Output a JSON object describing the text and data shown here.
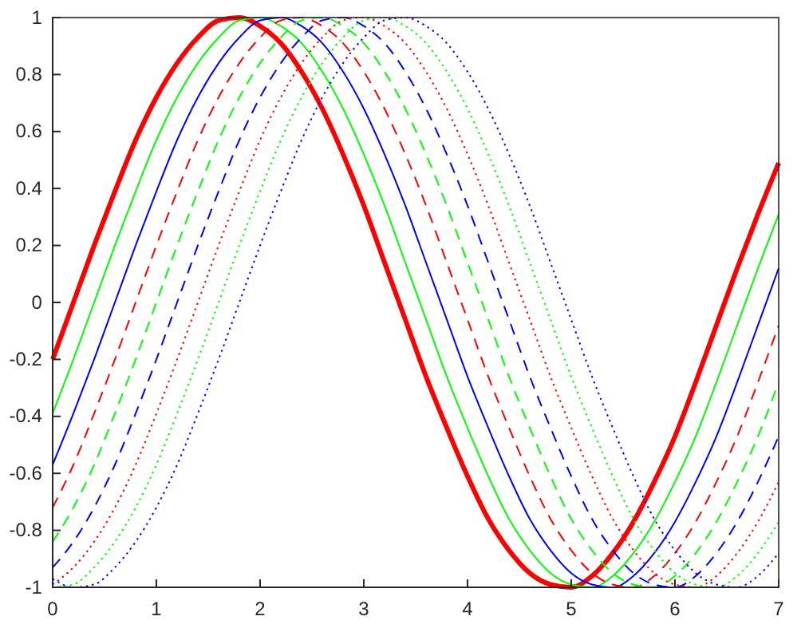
{
  "chart_data": {
    "type": "line",
    "x": [
      0,
      0.2,
      0.4,
      0.6,
      0.8,
      1,
      1.2,
      1.4,
      1.6,
      1.8,
      2,
      2.2,
      2.4,
      2.6,
      2.8,
      3,
      3.2,
      3.4,
      3.6,
      3.8,
      4,
      4.2,
      4.4,
      4.6,
      4.8,
      5,
      5.2,
      5.4,
      5.6,
      5.8,
      6,
      6.2,
      6.4,
      6.6,
      6.8,
      7
    ],
    "xlim": [
      0,
      7
    ],
    "xticks": [
      0,
      1,
      2,
      3,
      4,
      5,
      6,
      7
    ],
    "ylim": [
      -1,
      1
    ],
    "yticks": [
      -1,
      -0.8,
      -0.6,
      -0.4,
      -0.2,
      0,
      0.2,
      0.4,
      0.6,
      0.8,
      1
    ],
    "grid": false,
    "marker": "none",
    "series": [
      {
        "color": "#ff0000",
        "line_style": "solid",
        "values": [
          -0.2,
          0,
          0.2,
          0.39,
          0.57,
          0.72,
          0.84,
          0.93,
          0.99,
          1.0,
          0.97,
          0.91,
          0.81,
          0.68,
          0.52,
          0.34,
          0.14,
          -0.06,
          -0.26,
          -0.44,
          -0.61,
          -0.76,
          -0.87,
          -0.95,
          -0.99,
          -1.0,
          -0.96,
          -0.88,
          -0.77,
          -0.63,
          -0.47,
          -0.28,
          -0.08,
          0.12,
          0.31,
          0.49
        ]
      },
      {
        "color": "#00ff00",
        "line_style": "solid",
        "values": [
          -0.39,
          -0.2,
          0,
          0.2,
          0.39,
          0.57,
          0.72,
          0.84,
          0.93,
          0.99,
          1.0,
          0.97,
          0.91,
          0.81,
          0.68,
          0.52,
          0.34,
          0.14,
          -0.06,
          -0.26,
          -0.44,
          -0.61,
          -0.76,
          -0.87,
          -0.95,
          -0.99,
          -1.0,
          -0.96,
          -0.88,
          -0.77,
          -0.63,
          -0.47,
          -0.28,
          -0.08,
          0.12,
          0.31
        ]
      },
      {
        "color": "#0000ff",
        "line_style": "solid",
        "values": [
          -0.57,
          -0.39,
          -0.2,
          0,
          0.2,
          0.39,
          0.57,
          0.72,
          0.84,
          0.93,
          0.99,
          1.0,
          0.97,
          0.91,
          0.81,
          0.68,
          0.52,
          0.34,
          0.14,
          -0.06,
          -0.26,
          -0.44,
          -0.61,
          -0.76,
          -0.87,
          -0.95,
          -0.99,
          -1.0,
          -0.96,
          -0.88,
          -0.77,
          -0.63,
          -0.47,
          -0.28,
          -0.08,
          0.12
        ]
      },
      {
        "color": "#ff0000",
        "line_style": "dashed",
        "values": [
          -0.72,
          -0.57,
          -0.39,
          -0.2,
          0,
          0.2,
          0.39,
          0.57,
          0.72,
          0.84,
          0.93,
          0.99,
          1.0,
          0.97,
          0.91,
          0.81,
          0.68,
          0.52,
          0.34,
          0.14,
          -0.06,
          -0.26,
          -0.44,
          -0.61,
          -0.76,
          -0.87,
          -0.95,
          -0.99,
          -1.0,
          -0.96,
          -0.88,
          -0.77,
          -0.63,
          -0.47,
          -0.28,
          -0.08
        ]
      },
      {
        "color": "#00ff00",
        "line_style": "dashed",
        "values": [
          -0.84,
          -0.72,
          -0.57,
          -0.39,
          -0.2,
          0,
          0.2,
          0.39,
          0.57,
          0.72,
          0.84,
          0.93,
          0.99,
          1.0,
          0.97,
          0.91,
          0.81,
          0.68,
          0.52,
          0.34,
          0.14,
          -0.06,
          -0.26,
          -0.44,
          -0.61,
          -0.76,
          -0.87,
          -0.95,
          -0.99,
          -1.0,
          -0.96,
          -0.88,
          -0.77,
          -0.63,
          -0.47,
          -0.28
        ]
      },
      {
        "color": "#0000ff",
        "line_style": "dashed",
        "values": [
          -0.93,
          -0.84,
          -0.72,
          -0.57,
          -0.39,
          -0.2,
          0,
          0.2,
          0.39,
          0.57,
          0.72,
          0.84,
          0.93,
          0.99,
          1.0,
          0.97,
          0.91,
          0.81,
          0.68,
          0.52,
          0.34,
          0.14,
          -0.06,
          -0.26,
          -0.44,
          -0.61,
          -0.76,
          -0.87,
          -0.95,
          -0.99,
          -1.0,
          -0.96,
          -0.88,
          -0.77,
          -0.63,
          -0.47
        ]
      },
      {
        "color": "#ff0000",
        "line_style": "dotted",
        "values": [
          -0.99,
          -0.93,
          -0.84,
          -0.72,
          -0.57,
          -0.39,
          -0.2,
          0,
          0.2,
          0.39,
          0.57,
          0.72,
          0.84,
          0.93,
          0.99,
          1.0,
          0.97,
          0.91,
          0.81,
          0.68,
          0.52,
          0.34,
          0.14,
          -0.06,
          -0.26,
          -0.44,
          -0.61,
          -0.76,
          -0.87,
          -0.95,
          -0.99,
          -1.0,
          -0.96,
          -0.88,
          -0.77,
          -0.63
        ]
      },
      {
        "color": "#00ff00",
        "line_style": "dotted",
        "values": [
          -1.0,
          -0.99,
          -0.93,
          -0.84,
          -0.72,
          -0.57,
          -0.39,
          -0.2,
          0,
          0.2,
          0.39,
          0.57,
          0.72,
          0.84,
          0.93,
          0.99,
          1.0,
          0.97,
          0.91,
          0.81,
          0.68,
          0.52,
          0.34,
          0.14,
          -0.06,
          -0.26,
          -0.44,
          -0.61,
          -0.76,
          -0.87,
          -0.95,
          -0.99,
          -1.0,
          -0.96,
          -0.88,
          -0.77
        ]
      },
      {
        "color": "#0000ff",
        "line_style": "dotted",
        "values": [
          -0.97,
          -1.0,
          -0.99,
          -0.93,
          -0.84,
          -0.72,
          -0.57,
          -0.39,
          -0.2,
          0,
          0.2,
          0.39,
          0.57,
          0.72,
          0.84,
          0.93,
          0.99,
          1.0,
          0.97,
          0.91,
          0.81,
          0.68,
          0.52,
          0.34,
          0.14,
          -0.06,
          -0.26,
          -0.44,
          -0.61,
          -0.76,
          -0.87,
          -0.95,
          -0.99,
          -1.0,
          -0.96,
          -0.88
        ]
      }
    ]
  }
}
